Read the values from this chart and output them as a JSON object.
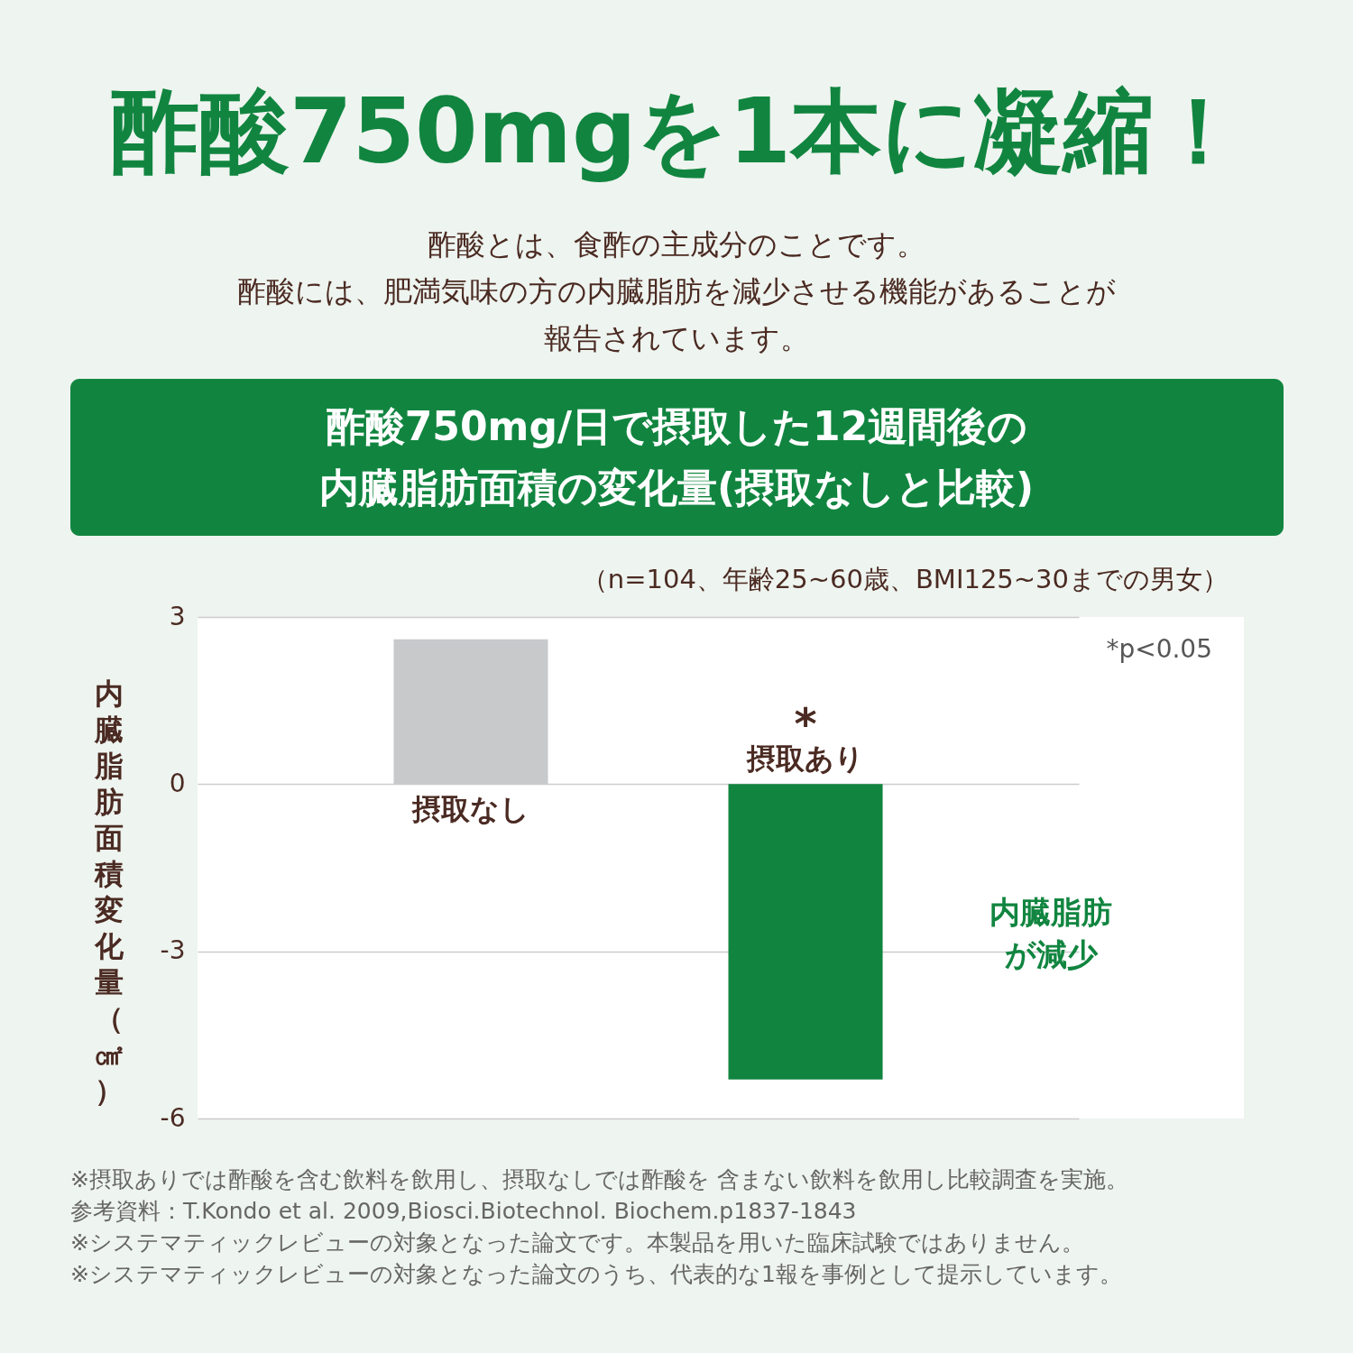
{
  "chart_data": {
    "type": "bar",
    "title": "酢酸750mgを1本に凝縮！",
    "subtitle": [
      "酢酸とは、食酢の主成分のことです。",
      "酢酸には、肥満気味の方の内臓脂肪を減少させる機能があることが",
      "報告されています。"
    ],
    "ylabel": "内臓脂肪面積変化量（㎠）",
    "categories": [
      "摂取なし",
      "摂取あり"
    ],
    "values": [
      2.6,
      -5.3
    ],
    "colors": [
      "#c8c9cb",
      "#118540"
    ],
    "ylim": [
      -6,
      3
    ],
    "yticks": [
      -6,
      -3,
      0,
      3
    ],
    "grid": "y",
    "annotations": [
      "酢酸750mg/日で摂取した12週間後の",
      "内臓脂肪面積の変化量(摂取なしと比較)",
      "（n=104、年齢25~60歳、BMI125~30までの男女）",
      "*p<0.05",
      "内臓脂肪",
      "が減少",
      "*",
      "※摂取ありでは酢酸を含む飲料を飲用し、摂取なしでは酢酸を 含まない飲料を飲用し比較調査を実施。",
      "参考資料：T.Kondo et al. 2009,Biosci.Biotechnol. Biochem.p1837-1843",
      "※システマティックレビューの対象となった論文です。本製品を用いた臨床試験ではありません。",
      "※システマティックレビューの対象となった論文のうち、代表的な1報を事例として提示しています。"
    ]
  }
}
